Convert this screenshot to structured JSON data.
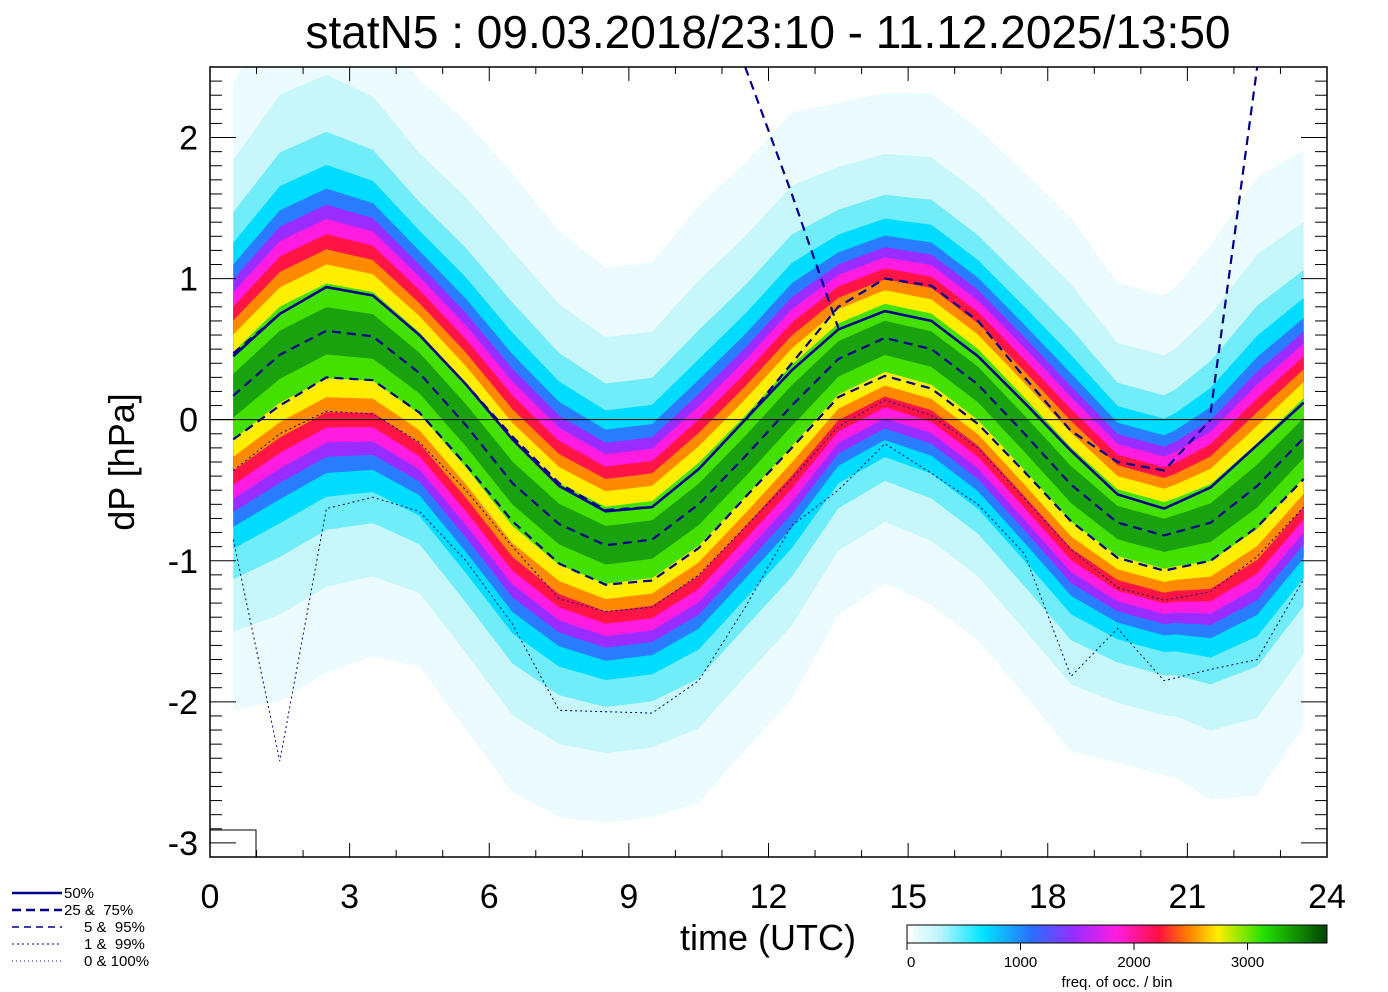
{
  "chart_data": {
    "type": "heatmap",
    "title": "statN5 : 09.03.2018/23:10 - 11.12.2025/13:50",
    "xlabel": "time (UTC)",
    "ylabel": "dP [hPa]",
    "xlim": [
      0,
      24
    ],
    "ylim": [
      -3.1,
      2.5
    ],
    "xticks": [
      "0",
      "3",
      "6",
      "9",
      "12",
      "15",
      "18",
      "21",
      "24"
    ],
    "yticks": [
      "-3",
      "-2",
      "-1",
      "0",
      "1",
      "2"
    ],
    "colorbar": {
      "label": "freq. of occ. / bin",
      "ticks": [
        "0",
        "1000",
        "2000",
        "3000"
      ],
      "range": [
        0,
        3700
      ]
    },
    "x": [
      0.5,
      1.5,
      2.5,
      3.5,
      4.5,
      5.5,
      6.5,
      7.5,
      8.5,
      9.5,
      10.5,
      11.5,
      12.5,
      13.5,
      14.5,
      15.5,
      16.5,
      17.5,
      18.5,
      19.5,
      20.5,
      21.5,
      22.5,
      23.5
    ],
    "series": [
      {
        "name": "50%",
        "style": "solid",
        "color": "#00008b",
        "values": [
          0.45,
          0.75,
          0.94,
          0.88,
          0.6,
          0.25,
          -0.14,
          -0.47,
          -0.65,
          -0.62,
          -0.35,
          0.0,
          0.35,
          0.64,
          0.77,
          0.7,
          0.45,
          0.12,
          -0.22,
          -0.53,
          -0.63,
          -0.48,
          -0.18,
          0.12
        ]
      },
      {
        "name": "25 & 75%",
        "style": "dashed",
        "color": "#00008b",
        "values": [
          0.17,
          0.46,
          0.63,
          0.59,
          0.33,
          -0.04,
          -0.45,
          -0.74,
          -0.89,
          -0.85,
          -0.6,
          -0.26,
          0.1,
          0.43,
          0.58,
          0.5,
          0.25,
          -0.1,
          -0.46,
          -0.73,
          -0.82,
          -0.73,
          -0.47,
          -0.13
        ]
      },
      {
        "name": "",
        "style": "dashed",
        "color": "#00008b",
        "values": [
          0.47,
          0.75,
          0.94,
          0.88,
          0.6,
          0.25,
          -0.12,
          -0.45,
          -0.64,
          -0.62,
          -0.35,
          0.0,
          0.4,
          0.8,
          1.0,
          0.95,
          0.7,
          0.3,
          -0.08,
          -0.3,
          -0.36,
          0.0,
          null,
          null
        ]
      },
      {
        "name": "5 & 95%",
        "style": "dashed",
        "color": "#00008b",
        "values": [
          -0.14,
          0.1,
          0.3,
          0.28,
          0.05,
          -0.32,
          -0.72,
          -1.02,
          -1.17,
          -1.14,
          -0.91,
          -0.55,
          -0.2,
          0.16,
          0.31,
          0.22,
          -0.03,
          -0.37,
          -0.72,
          -0.98,
          -1.07,
          -1.0,
          -0.76,
          -0.42
        ]
      },
      {
        "name": "",
        "style": "dashed",
        "color": "#00008b",
        "values": [
          null,
          null,
          null,
          null,
          null,
          null,
          null,
          null,
          null,
          null,
          null,
          2.5,
          1.6,
          0.65,
          null,
          null,
          null,
          null,
          null,
          null,
          null,
          0.05,
          2.5,
          null
        ]
      },
      {
        "name": "1 & 99%",
        "style": "dotted",
        "color": "#00008b",
        "values": [
          -0.36,
          -0.1,
          0.06,
          0.04,
          -0.16,
          -0.5,
          -0.9,
          -1.27,
          -1.36,
          -1.33,
          -1.1,
          -0.76,
          -0.42,
          -0.05,
          0.14,
          0.03,
          -0.2,
          -0.56,
          -0.92,
          -1.19,
          -1.28,
          -1.22,
          -0.97,
          -0.62
        ]
      },
      {
        "name": "0 & 100%",
        "style": "dotted",
        "color": "#00008b",
        "values": [
          -0.85,
          -2.42,
          -0.63,
          -0.55,
          -0.65,
          -1.0,
          -1.45,
          -2.06,
          -2.07,
          -2.08,
          -1.85,
          -1.33,
          -0.75,
          -0.5,
          -0.17,
          -0.38,
          -0.6,
          -0.95,
          -1.82,
          -1.48,
          -1.85,
          -1.77,
          -1.7,
          -1.13
        ]
      }
    ],
    "legend": [
      "50%",
      "25 &  75%",
      "5 &  95%",
      "1 &  99%",
      "0 & 100%"
    ],
    "legend_placement": "bottom-left",
    "zero_line": true
  }
}
